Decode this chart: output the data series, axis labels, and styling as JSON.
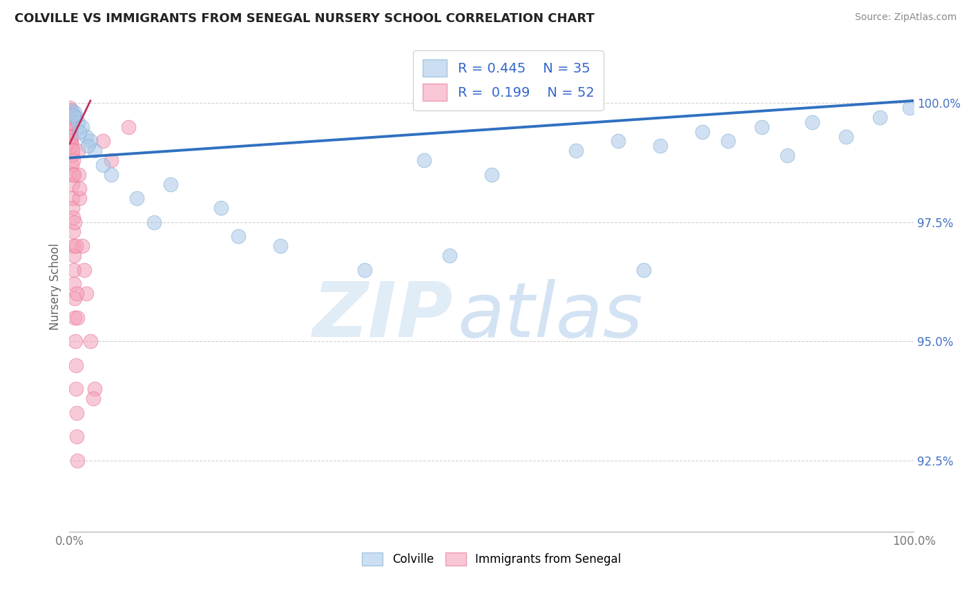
{
  "title": "COLVILLE VS IMMIGRANTS FROM SENEGAL NURSERY SCHOOL CORRELATION CHART",
  "source_text": "Source: ZipAtlas.com",
  "ylabel": "Nursery School",
  "legend_blue_label": "Colville",
  "legend_pink_label": "Immigrants from Senegal",
  "blue_R": 0.445,
  "blue_N": 35,
  "pink_R": 0.199,
  "pink_N": 52,
  "blue_color": "#aac8e8",
  "pink_color": "#f4a0b8",
  "blue_edge_color": "#7badd4",
  "pink_edge_color": "#e87090",
  "blue_line_color": "#3070c0",
  "pink_line_color": "#c03060",
  "blue_x": [
    0.3,
    0.6,
    0.8,
    1.0,
    1.5,
    2.0,
    2.5,
    3.0,
    5.0,
    8.0,
    12.0,
    18.0,
    25.0,
    35.0,
    42.0,
    50.0,
    60.0,
    65.0,
    70.0,
    75.0,
    78.0,
    82.0,
    88.0,
    92.0,
    96.0,
    99.5,
    0.5,
    1.2,
    2.2,
    4.0,
    10.0,
    20.0,
    45.0,
    68.0,
    85.0
  ],
  "blue_y": [
    99.85,
    99.8,
    99.7,
    99.6,
    99.5,
    99.3,
    99.2,
    99.0,
    98.5,
    98.0,
    98.3,
    97.8,
    97.0,
    96.5,
    98.8,
    98.5,
    99.0,
    99.2,
    99.1,
    99.4,
    99.2,
    99.5,
    99.6,
    99.3,
    99.7,
    99.9,
    99.75,
    99.4,
    99.1,
    98.7,
    97.5,
    97.2,
    96.8,
    96.5,
    98.9
  ],
  "pink_x": [
    0.05,
    0.08,
    0.1,
    0.12,
    0.15,
    0.18,
    0.2,
    0.23,
    0.25,
    0.28,
    0.3,
    0.33,
    0.35,
    0.38,
    0.4,
    0.42,
    0.45,
    0.48,
    0.5,
    0.52,
    0.55,
    0.58,
    0.6,
    0.65,
    0.7,
    0.75,
    0.8,
    0.85,
    0.9,
    0.95,
    1.0,
    1.1,
    1.2,
    1.5,
    2.0,
    2.5,
    3.0,
    4.0,
    5.0,
    7.0,
    0.15,
    0.25,
    0.35,
    0.45,
    0.55,
    0.65,
    0.75,
    0.85,
    0.95,
    1.2,
    1.8,
    2.8
  ],
  "pink_y": [
    99.9,
    99.8,
    99.7,
    99.6,
    99.85,
    99.5,
    99.4,
    99.3,
    99.2,
    99.1,
    98.9,
    98.7,
    98.5,
    98.3,
    98.0,
    97.8,
    97.6,
    97.3,
    97.0,
    96.8,
    96.5,
    96.2,
    95.9,
    95.5,
    95.0,
    94.5,
    94.0,
    93.5,
    93.0,
    92.5,
    99.0,
    98.5,
    98.0,
    97.0,
    96.0,
    95.0,
    94.0,
    99.2,
    98.8,
    99.5,
    99.6,
    99.3,
    99.0,
    98.8,
    98.5,
    97.5,
    97.0,
    96.0,
    95.5,
    98.2,
    96.5,
    93.8
  ],
  "xlim": [
    0,
    100
  ],
  "ylim": [
    91.0,
    101.3
  ],
  "yticks": [
    92.5,
    95.0,
    97.5,
    100.0
  ],
  "ytick_labels": [
    "92.5%",
    "95.0%",
    "97.5%",
    "100.0%"
  ],
  "background_color": "#ffffff",
  "grid_color": "#cccccc",
  "blue_trend_x": [
    0,
    100
  ],
  "blue_trend_y": [
    98.8,
    100.0
  ],
  "pink_trend_x": [
    0.05,
    3.0
  ],
  "pink_trend_y": [
    100.0,
    99.5
  ]
}
